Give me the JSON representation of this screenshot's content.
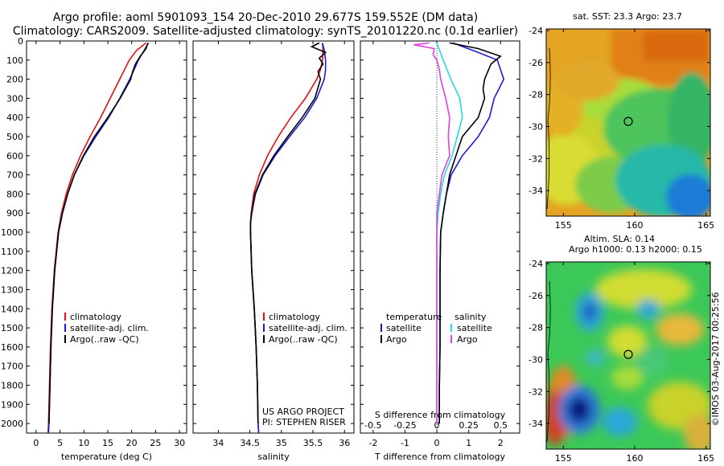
{
  "header": {
    "title_line1": "Argo profile: aoml 5901093_154 20-Dec-2010 29.677S 159.552E (DM data)",
    "title_line2": "Climatology: CARS2009. Satellite-adjusted climatology: synTS_20101220.nc (0.1d earlier)"
  },
  "colors": {
    "climatology": "#e01010",
    "satellite": "#1a1adc",
    "argo": "#000000",
    "satellite_s": "#22dddd",
    "argo_s": "#e040e0"
  },
  "chart_data": [
    {
      "type": "line",
      "title": "",
      "xlabel": "temperature (deg C)",
      "ylabel": "",
      "xlim": [
        -2,
        31.5
      ],
      "ylim": [
        2050,
        0
      ],
      "xticks": [
        0,
        5,
        10,
        15,
        20,
        25,
        30
      ],
      "yticks": [
        0,
        100,
        200,
        300,
        400,
        500,
        600,
        700,
        800,
        900,
        1000,
        1100,
        1200,
        1300,
        1400,
        1500,
        1600,
        1700,
        1800,
        1900,
        2000
      ],
      "legend": [
        "climatology",
        "satellite-adj. clim.",
        "Argo(..raw -QC)"
      ],
      "series": [
        {
          "name": "climatology",
          "color": "climatology",
          "depth": [
            10,
            50,
            100,
            150,
            200,
            300,
            400,
            500,
            600,
            700,
            800,
            900,
            1000,
            1200,
            1400,
            1600,
            1800,
            2000,
            2050
          ],
          "values": [
            23.0,
            21.0,
            19.5,
            18.5,
            17.5,
            15.5,
            13.5,
            11.3,
            9.3,
            7.6,
            6.3,
            5.3,
            4.6,
            3.8,
            3.3,
            3.0,
            2.8,
            2.6,
            2.5
          ]
        },
        {
          "name": "satellite-adj. clim.",
          "color": "satellite",
          "depth": [
            10,
            50,
            100,
            150,
            200,
            300,
            400,
            500,
            600,
            700,
            800,
            900,
            1000,
            1200,
            1400,
            1600,
            1800,
            2000,
            2050
          ],
          "values": [
            23.5,
            22.6,
            21.4,
            20.5,
            19.6,
            17.5,
            15.2,
            12.5,
            10.0,
            8.0,
            6.6,
            5.5,
            4.7,
            3.9,
            3.4,
            3.1,
            2.9,
            2.7,
            2.6
          ]
        },
        {
          "name": "Argo(..raw -QC)",
          "color": "argo",
          "depth": [
            10,
            40,
            80,
            120,
            160,
            200,
            300,
            400,
            500,
            600,
            700,
            800,
            900,
            1000,
            1200,
            1400,
            1600,
            1800,
            2000
          ],
          "values": [
            23.4,
            23.0,
            21.8,
            20.8,
            20.2,
            19.8,
            17.6,
            15.0,
            12.2,
            9.9,
            8.0,
            6.6,
            5.5,
            4.7,
            3.9,
            3.4,
            3.1,
            2.9,
            2.7
          ]
        }
      ]
    },
    {
      "type": "line",
      "title": "",
      "xlabel": "salinity",
      "ylabel": "",
      "xlim": [
        33.6,
        36.15
      ],
      "ylim": [
        2050,
        0
      ],
      "xticks": [
        34,
        34.5,
        35,
        35.5,
        36
      ],
      "legend": [
        "climatology",
        "satellite-adj. clim.",
        "Argo(..raw -QC)"
      ],
      "annotation": [
        "US ARGO PROJECT",
        "PI: STEPHEN RISER"
      ],
      "series": [
        {
          "name": "climatology",
          "color": "climatology",
          "depth": [
            10,
            50,
            100,
            150,
            200,
            300,
            400,
            500,
            600,
            700,
            800,
            900,
            950,
            1000,
            1200,
            1400,
            1600,
            1800,
            2000,
            2050
          ],
          "values": [
            35.65,
            35.66,
            35.65,
            35.62,
            35.56,
            35.38,
            35.15,
            34.95,
            34.78,
            34.65,
            34.56,
            34.52,
            34.51,
            34.51,
            34.53,
            34.57,
            34.6,
            34.62,
            34.63,
            34.64
          ]
        },
        {
          "name": "satellite-adj. clim.",
          "color": "satellite",
          "depth": [
            10,
            50,
            100,
            150,
            200,
            300,
            400,
            500,
            600,
            700,
            800,
            900,
            950,
            1000,
            1200,
            1400,
            1600,
            1800,
            2000,
            2050
          ],
          "values": [
            35.65,
            35.68,
            35.7,
            35.7,
            35.68,
            35.56,
            35.37,
            35.13,
            34.9,
            34.71,
            34.59,
            34.53,
            34.51,
            34.51,
            34.53,
            34.57,
            34.6,
            34.62,
            34.63,
            34.64
          ]
        },
        {
          "name": "Argo(..raw -QC)",
          "color": "argo",
          "depth": [
            10,
            30,
            60,
            90,
            120,
            160,
            200,
            300,
            400,
            500,
            600,
            700,
            800,
            900,
            950,
            1000,
            1200,
            1400,
            1600,
            1800,
            2000
          ],
          "values": [
            35.6,
            35.48,
            35.7,
            35.6,
            35.66,
            35.58,
            35.62,
            35.53,
            35.33,
            35.1,
            34.88,
            34.7,
            34.58,
            34.53,
            34.51,
            34.51,
            34.53,
            34.57,
            34.6,
            34.62,
            34.63
          ]
        }
      ]
    },
    {
      "type": "line",
      "title": "",
      "xlabel": "T difference from climatology",
      "xlabel_top": "S difference from climatology",
      "xlim": [
        -2.4,
        2.6
      ],
      "ylim": [
        2050,
        0
      ],
      "xticks": [
        -2,
        -1,
        0,
        1,
        2
      ],
      "xticks_s": [
        -0.5,
        -0.25,
        0,
        0.25,
        0.5
      ],
      "legend_title_t": "temperature",
      "legend_title_s": "salinity",
      "legend_t": [
        "satellite",
        "Argo"
      ],
      "legend_s": [
        "satellite",
        "Argo"
      ],
      "series": [
        {
          "name": "satellite",
          "kind": "temperature",
          "color": "satellite",
          "depth": [
            10,
            60,
            100,
            150,
            200,
            250,
            300,
            400,
            500,
            600,
            700,
            800,
            900,
            1000,
            1200,
            1400,
            1600,
            1800,
            2000
          ],
          "values": [
            0.5,
            1.3,
            1.9,
            2.0,
            2.1,
            1.95,
            1.8,
            1.65,
            1.3,
            0.8,
            0.45,
            0.3,
            0.2,
            0.12,
            0.1,
            0.1,
            0.1,
            0.08,
            0.08
          ]
        },
        {
          "name": "Argo",
          "kind": "temperature",
          "color": "argo",
          "depth": [
            10,
            40,
            80,
            120,
            160,
            200,
            250,
            300,
            400,
            500,
            600,
            700,
            800,
            900,
            1000,
            1200,
            1400,
            1600,
            1800,
            2000
          ],
          "values": [
            0.4,
            1.3,
            2.0,
            1.7,
            1.6,
            1.5,
            1.45,
            1.5,
            1.3,
            0.8,
            0.6,
            0.4,
            0.3,
            0.2,
            0.12,
            0.1,
            0.1,
            0.1,
            0.08,
            0.08
          ]
        },
        {
          "name": "satellite",
          "kind": "salinity",
          "color": "satellite_s",
          "depth": [
            10,
            100,
            200,
            300,
            400,
            500,
            600,
            700,
            800,
            900,
            1000,
            1200,
            1400,
            1600,
            1800,
            2000
          ],
          "values": [
            0.0,
            0.05,
            0.11,
            0.18,
            0.2,
            0.16,
            0.12,
            0.06,
            0.03,
            0.01,
            0.0,
            0.0,
            0.0,
            0.0,
            0.0,
            0.0
          ]
        },
        {
          "name": "Argo",
          "kind": "salinity",
          "color": "argo_s",
          "depth": [
            10,
            20,
            40,
            70,
            100,
            150,
            200,
            300,
            400,
            500,
            600,
            700,
            800,
            900,
            1000,
            1200,
            1400,
            1600,
            1800,
            2000
          ],
          "values": [
            -0.06,
            -0.18,
            -0.02,
            -0.03,
            0.0,
            0.02,
            0.03,
            0.07,
            0.1,
            0.09,
            0.1,
            0.04,
            0.02,
            0.0,
            0.0,
            0.0,
            0.0,
            0.0,
            0.0,
            0.0
          ]
        }
      ]
    },
    {
      "type": "heatmap",
      "title": "sat. SST: 23.3 Argo: 23.7",
      "xlim": [
        153.8,
        165.3
      ],
      "ylim": [
        -35.6,
        -23.9
      ],
      "xticks": [
        155,
        160,
        165
      ],
      "yticks": [
        -24,
        -26,
        -28,
        -30,
        -32,
        -34
      ],
      "float_lon": 159.55,
      "float_lat": -29.68
    },
    {
      "type": "heatmap",
      "title": "Altim. SLA: 0.14",
      "subtitle": "Argo h1000: 0.13 h2000: 0.15",
      "xlim": [
        153.8,
        165.3
      ],
      "ylim": [
        -35.6,
        -23.9
      ],
      "xticks": [
        155,
        160,
        165
      ],
      "yticks": [
        -24,
        -26,
        -28,
        -30,
        -32,
        -34
      ],
      "float_lon": 159.55,
      "float_lat": -29.68
    }
  ],
  "side_label": "©IMOS 03-Aug-2017 00:25:56"
}
